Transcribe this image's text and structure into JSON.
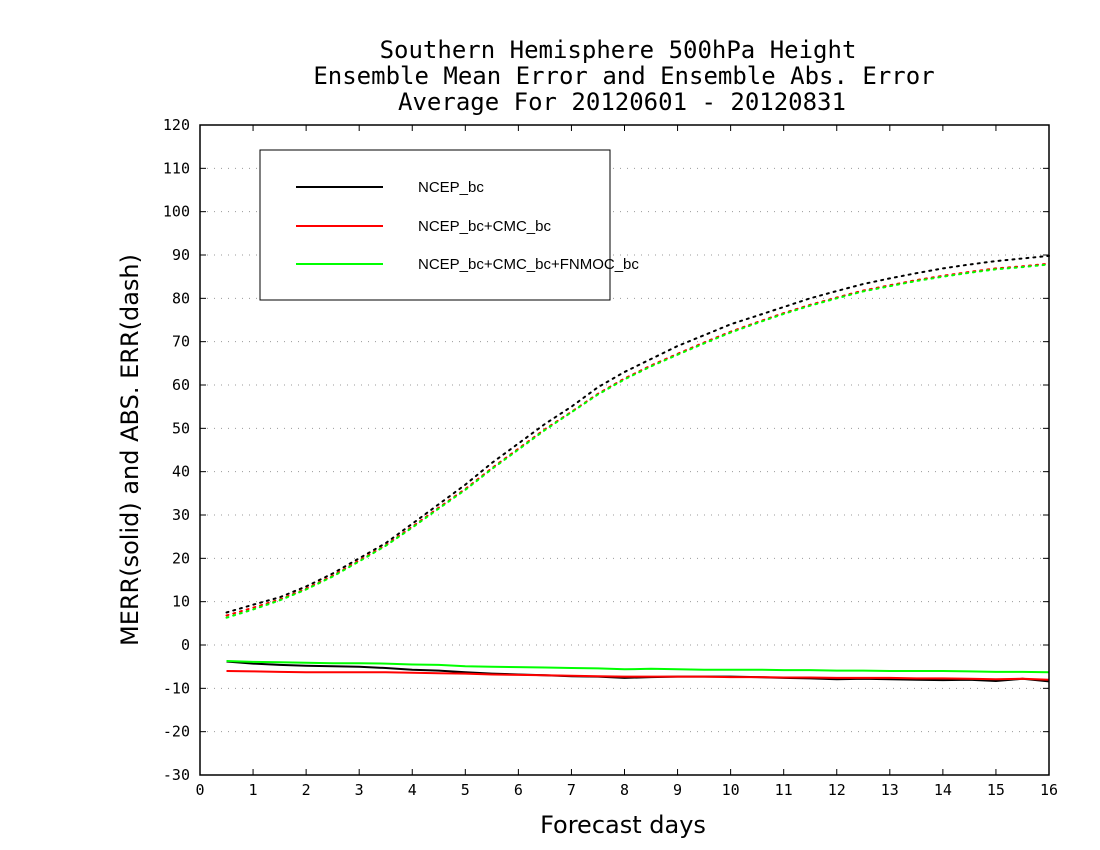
{
  "chart_data": {
    "type": "line",
    "title": [
      "Southern Hemisphere 500hPa Height",
      "Ensemble Mean Error and Ensemble Abs. Error",
      "Average For 20120601 - 20120831"
    ],
    "xlabel": "Forecast days",
    "ylabel": "MERR(solid) and ABS. ERR(dash)",
    "xlim": [
      0,
      16
    ],
    "ylim": [
      -30,
      120
    ],
    "xticks": [
      0,
      1,
      2,
      3,
      4,
      5,
      6,
      7,
      8,
      9,
      10,
      11,
      12,
      13,
      14,
      15,
      16
    ],
    "yticks": [
      -30,
      -20,
      -10,
      0,
      10,
      20,
      30,
      40,
      50,
      60,
      70,
      80,
      90,
      100,
      110,
      120
    ],
    "ytick_labels": [
      "-30",
      "-20",
      "-10",
      "0",
      "10",
      "20",
      "30",
      "40",
      "50",
      "60",
      "70",
      "80",
      "90",
      "100",
      "110",
      "120"
    ],
    "grid": "horizontal dotted",
    "legend_position": "top-left",
    "x": [
      0.5,
      1,
      1.5,
      2,
      2.5,
      3,
      3.5,
      4,
      4.5,
      5,
      5.5,
      6,
      6.5,
      7,
      7.5,
      8,
      8.5,
      9,
      9.5,
      10,
      10.5,
      11,
      11.5,
      12,
      12.5,
      13,
      13.5,
      14,
      14.5,
      15,
      15.5,
      16
    ],
    "series": [
      {
        "name": "NCEP_bc",
        "color": "#000000",
        "merr": [
          -3.8,
          -4.3,
          -4.6,
          -4.8,
          -4.9,
          -5.0,
          -5.3,
          -5.7,
          -5.9,
          -6.3,
          -6.6,
          -6.8,
          -7.0,
          -7.2,
          -7.3,
          -7.6,
          -7.4,
          -7.3,
          -7.3,
          -7.3,
          -7.4,
          -7.6,
          -7.7,
          -7.9,
          -7.8,
          -7.9,
          -8.0,
          -8.1,
          -8.0,
          -8.3,
          -7.8,
          -8.4
        ],
        "abs_err": [
          7.5,
          9.3,
          11.0,
          13.5,
          16.5,
          20.0,
          23.5,
          28.0,
          32.5,
          37.0,
          42.0,
          46.5,
          51.0,
          55.0,
          59.5,
          63.0,
          66.0,
          69.0,
          71.5,
          74.0,
          76.0,
          78.0,
          80.0,
          81.7,
          83.3,
          84.6,
          85.8,
          86.9,
          87.8,
          88.6,
          89.2,
          89.8
        ]
      },
      {
        "name": "NCEP_bc+CMC_bc",
        "color": "#ff0000",
        "merr": [
          -6.0,
          -6.1,
          -6.2,
          -6.3,
          -6.3,
          -6.3,
          -6.3,
          -6.4,
          -6.5,
          -6.6,
          -6.8,
          -6.9,
          -7.0,
          -7.1,
          -7.2,
          -7.3,
          -7.3,
          -7.3,
          -7.3,
          -7.4,
          -7.4,
          -7.5,
          -7.5,
          -7.6,
          -7.6,
          -7.6,
          -7.7,
          -7.7,
          -7.8,
          -7.9,
          -7.8,
          -8.0
        ],
        "abs_err": [
          6.8,
          8.6,
          10.5,
          13.0,
          16.0,
          19.5,
          23.0,
          27.3,
          31.7,
          36.0,
          40.8,
          45.3,
          49.8,
          53.8,
          58.0,
          61.5,
          64.5,
          67.2,
          69.8,
          72.3,
          74.5,
          76.6,
          78.5,
          80.2,
          81.8,
          83.0,
          84.2,
          85.2,
          86.1,
          86.9,
          87.4,
          88.0
        ]
      },
      {
        "name": "NCEP_bc+CMC_bc+FNMOC_bc",
        "color": "#00ff00",
        "merr": [
          -3.7,
          -3.9,
          -4.0,
          -4.1,
          -4.2,
          -4.2,
          -4.3,
          -4.5,
          -4.6,
          -4.9,
          -5.0,
          -5.1,
          -5.2,
          -5.3,
          -5.4,
          -5.6,
          -5.5,
          -5.6,
          -5.7,
          -5.7,
          -5.7,
          -5.8,
          -5.8,
          -5.9,
          -5.9,
          -6.0,
          -6.0,
          -6.0,
          -6.1,
          -6.2,
          -6.2,
          -6.3
        ],
        "abs_err": [
          6.3,
          8.2,
          10.3,
          12.8,
          15.8,
          19.3,
          22.9,
          27.1,
          31.5,
          35.8,
          40.6,
          45.1,
          49.6,
          53.7,
          57.8,
          61.3,
          64.3,
          67.0,
          69.6,
          72.1,
          74.3,
          76.4,
          78.3,
          80.0,
          81.6,
          82.8,
          84.0,
          85.0,
          85.9,
          86.7,
          87.2,
          87.8
        ]
      }
    ]
  }
}
